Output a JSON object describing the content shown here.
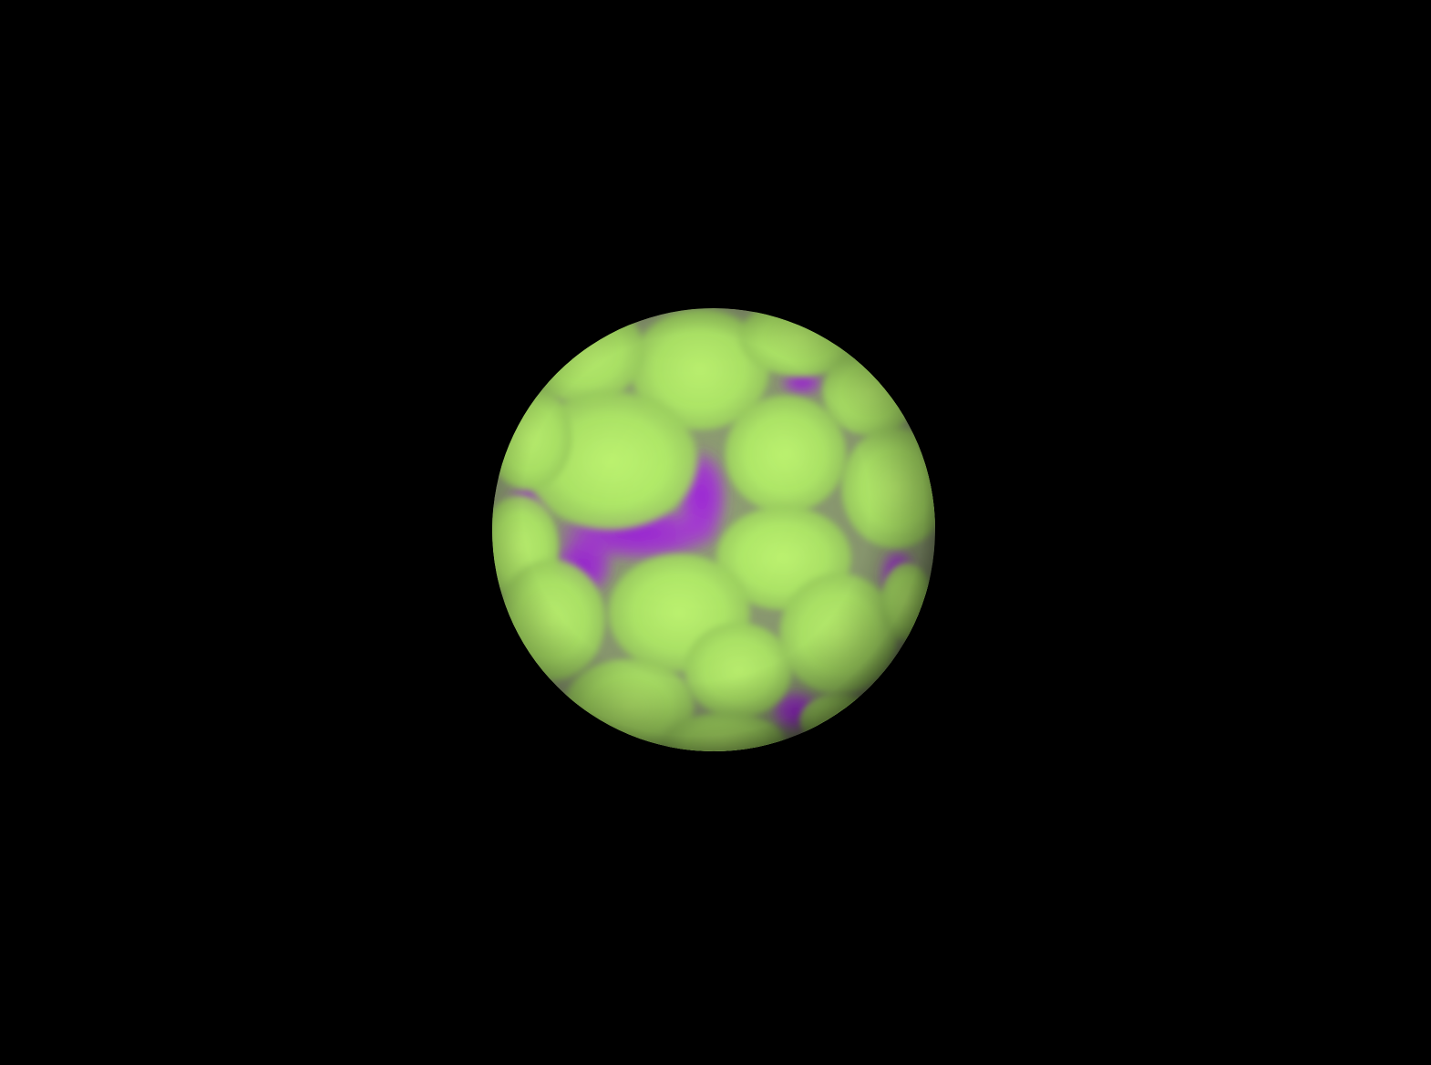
{
  "scene": {
    "background_color": "#000000",
    "subject": "sphere",
    "base_color": "#b2ec6a",
    "highlight_color": "#c2fa73",
    "seam_color": "#a633d9",
    "deep_seam_color": "#9c22d8",
    "shade_color": "#46541f"
  }
}
